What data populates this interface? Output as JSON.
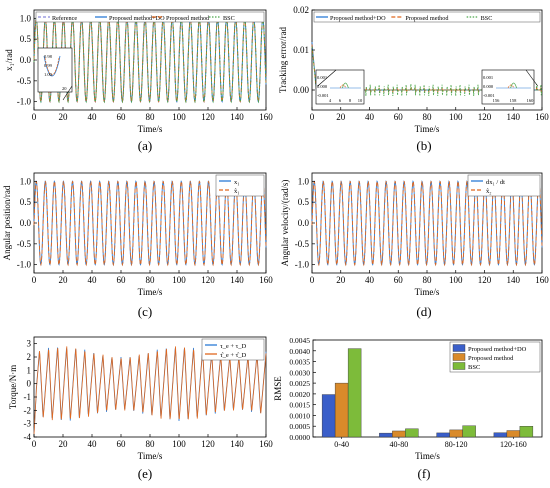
{
  "figure": {
    "panels": [
      {
        "id": "a",
        "caption": "(a)",
        "xlabel": "Time/s",
        "ylabel": "x₁/rad",
        "xlim": [
          0,
          160
        ],
        "ylim": [
          -1.2,
          1.2
        ],
        "xticks": [
          0,
          20,
          40,
          60,
          80,
          100,
          120,
          140,
          160
        ],
        "yticks": [
          -1.0,
          -0.5,
          0.0,
          0.5,
          1.0
        ],
        "ytick_labels": [
          "-1.0",
          "-0.5",
          "0.0",
          "0.5",
          "1.0"
        ],
        "legend": [
          "Reference",
          "Proposed method+DO",
          "Proposed method",
          "BSC"
        ],
        "inset": {
          "ytick_labels": [
            "0.98",
            "0.99",
            "1.00"
          ],
          "xtick_label": "20"
        }
      },
      {
        "id": "b",
        "caption": "(b)",
        "xlabel": "Time/s",
        "ylabel": "Tracking error/rad",
        "xlim": [
          0,
          160
        ],
        "ylim": [
          -0.005,
          0.02
        ],
        "xticks": [
          0,
          20,
          40,
          60,
          80,
          100,
          120,
          140,
          160
        ],
        "yticks": [
          0.0,
          0.01,
          0.02
        ],
        "ytick_labels": [
          "0.00",
          "0.01",
          "0.02"
        ],
        "legend": [
          "Proposed  method+DO",
          "Proposed  method",
          "BSC"
        ],
        "insets": [
          {
            "ytick_labels": [
              "0.001",
              "0.000",
              "-0.001"
            ],
            "xtick_labels": [
              "4",
              "6",
              "8",
              "10"
            ]
          },
          {
            "ytick_labels": [
              "0.001",
              "0.000",
              "-0.001"
            ],
            "xtick_labels": [
              "156",
              "158",
              "160"
            ]
          }
        ]
      },
      {
        "id": "c",
        "caption": "(c)",
        "xlabel": "Time/s",
        "ylabel": "Angular position/rad",
        "xlim": [
          0,
          160
        ],
        "ylim": [
          -1.2,
          1.2
        ],
        "xticks": [
          0,
          20,
          40,
          60,
          80,
          100,
          120,
          140,
          160
        ],
        "yticks": [
          -1.0,
          -0.5,
          0.0,
          0.5,
          1.0
        ],
        "ytick_labels": [
          "-1.0",
          "-0.5",
          "0.0",
          "0.5",
          "1.0"
        ],
        "legend": [
          "x₁",
          "x̂₁"
        ]
      },
      {
        "id": "d",
        "caption": "(d)",
        "xlabel": "Time/s",
        "ylabel": "Angular velocity/(rad/s)",
        "xlim": [
          0,
          160
        ],
        "ylim": [
          -1.2,
          1.2
        ],
        "xticks": [
          0,
          20,
          40,
          60,
          80,
          100,
          120,
          140,
          160
        ],
        "yticks": [
          -1.0,
          -0.5,
          0.0,
          0.5,
          1.0
        ],
        "ytick_labels": [
          "-1.0",
          "-0.5",
          "0.0",
          "0.5",
          "1.0"
        ],
        "legend": [
          "dx₁ / dt",
          "x̂₂"
        ]
      },
      {
        "id": "e",
        "caption": "(e)",
        "xlabel": "Time/s",
        "ylabel": "Torque/N·m",
        "xlim": [
          0,
          160
        ],
        "ylim": [
          -4,
          3.5
        ],
        "xticks": [
          0,
          20,
          40,
          60,
          80,
          100,
          120,
          140,
          160
        ],
        "yticks": [
          -4,
          -3,
          -2,
          -1,
          0,
          1,
          2,
          3
        ],
        "ytick_labels": [
          "-4",
          "-3",
          "-2",
          "-1",
          "0",
          "1",
          "2",
          "3"
        ],
        "legend": [
          "τ_e + τ_D",
          "τ̂_e + τ̂_D"
        ]
      },
      {
        "id": "f",
        "caption": "(f)",
        "xlabel": "Time/s",
        "ylabel": "RMSE",
        "ylim": [
          0,
          0.0045
        ],
        "yticks": [
          0.0,
          0.0005,
          0.001,
          0.0015,
          0.002,
          0.0025,
          0.003,
          0.0035,
          0.004,
          0.0045
        ],
        "ytick_labels": [
          "0.0000",
          "0.0005",
          "0.0010",
          "0.0015",
          "0.0020",
          "0.0025",
          "0.0030",
          "0.0035",
          "0.0040",
          "0.0045"
        ],
        "legend": [
          "Proposed method+DO",
          "Proposed method",
          "BSC"
        ]
      }
    ]
  },
  "chart_data": [
    {
      "type": "line",
      "panel": "a",
      "title": "",
      "xlabel": "Time/s",
      "ylabel": "x₁/rad",
      "xlim": [
        0,
        160
      ],
      "ylim": [
        -1.2,
        1.2
      ],
      "grid": false,
      "legend_position": "top",
      "signal": {
        "form": "sinusoid",
        "amplitude": 1.0,
        "period": 6.25,
        "mean": 0.0
      },
      "series": [
        {
          "name": "Reference",
          "phase": 0.0
        },
        {
          "name": "Proposed method+DO",
          "phase": 0.0
        },
        {
          "name": "Proposed method",
          "phase": 0.0
        },
        {
          "name": "BSC",
          "phase": 0.05
        }
      ]
    },
    {
      "type": "line",
      "panel": "b",
      "title": "",
      "xlabel": "Time/s",
      "ylabel": "Tracking error/rad",
      "xlim": [
        0,
        160
      ],
      "ylim": [
        -0.005,
        0.02
      ],
      "grid": false,
      "legend_position": "top",
      "initial_error": 0.012,
      "series": [
        {
          "name": "Proposed  method+DO",
          "steady_amplitude": 0.0002
        },
        {
          "name": "Proposed  method",
          "steady_amplitude": 0.0008
        },
        {
          "name": "BSC",
          "steady_amplitude": 0.0015
        }
      ]
    },
    {
      "type": "line",
      "panel": "c",
      "title": "",
      "xlabel": "Time/s",
      "ylabel": "Angular position/rad",
      "xlim": [
        0,
        160
      ],
      "ylim": [
        -1.2,
        1.2
      ],
      "grid": false,
      "legend_position": "top-right",
      "signal": {
        "form": "sinusoid",
        "amplitude": 1.0,
        "period": 6.25,
        "mean": 0.0
      },
      "series": [
        {
          "name": "x₁",
          "phase": 0.0
        },
        {
          "name": "x̂₁",
          "phase": 0.05
        }
      ]
    },
    {
      "type": "line",
      "panel": "d",
      "title": "",
      "xlabel": "Time/s",
      "ylabel": "Angular velocity/(rad/s)",
      "xlim": [
        0,
        160
      ],
      "ylim": [
        -1.2,
        1.2
      ],
      "grid": false,
      "legend_position": "top-right",
      "signal": {
        "form": "sinusoid",
        "amplitude": 1.0,
        "period": 6.25,
        "mean": 0.0
      },
      "series": [
        {
          "name": "dx₁ / dt",
          "phase": 0.0
        },
        {
          "name": "x̂₂",
          "phase": 0.05
        }
      ]
    },
    {
      "type": "line",
      "panel": "e",
      "title": "",
      "xlabel": "Time/s",
      "ylabel": "Torque/N·m",
      "xlim": [
        0,
        160
      ],
      "ylim": [
        -4,
        3.5
      ],
      "grid": false,
      "legend_position": "top-right",
      "signal": {
        "form": "sawtooth-like oscillation",
        "period": 6.25,
        "amplitude_min": 2.0,
        "amplitude_max": 2.8,
        "mean": 0.0
      },
      "series": [
        {
          "name": "τ_e + τ_D",
          "phase": 0.0
        },
        {
          "name": "τ̂_e + τ̂_D",
          "phase": 0.1
        }
      ]
    },
    {
      "type": "bar",
      "panel": "f",
      "title": "",
      "xlabel": "Time/s",
      "ylabel": "RMSE",
      "ylim": [
        0,
        0.0045
      ],
      "grid": false,
      "legend_position": "top-right",
      "categories": [
        "0-40",
        "40-80",
        "80-120",
        "120-160"
      ],
      "series": [
        {
          "name": "Proposed method+DO",
          "values": [
            0.00197,
            0.00018,
            0.00019,
            0.0002
          ]
        },
        {
          "name": "Proposed method",
          "values": [
            0.0025,
            0.00028,
            0.00033,
            0.0003
          ]
        },
        {
          "name": "BSC",
          "values": [
            0.0041,
            0.00038,
            0.00052,
            0.0005
          ]
        }
      ]
    }
  ],
  "colors": {
    "reference": "#8a8adc",
    "do": "#2b7bd6",
    "pm": "#e0681f",
    "bsc": "#4aa64a",
    "bar_do": "#3a5ec9",
    "bar_pm": "#d98a2a",
    "bar_bsc": "#7dbb3a"
  }
}
